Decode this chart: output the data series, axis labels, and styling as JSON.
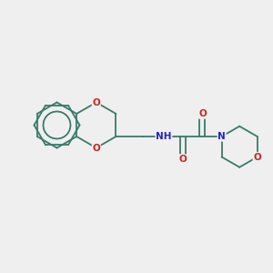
{
  "bg_color": "#efefef",
  "bond_color": "#3a7a6a",
  "bw": 1.3,
  "N_color": "#2222cc",
  "O_color": "#cc2222",
  "fs": 7.5,
  "xlim": [
    -1,
    11
  ],
  "ylim": [
    -1,
    9
  ]
}
